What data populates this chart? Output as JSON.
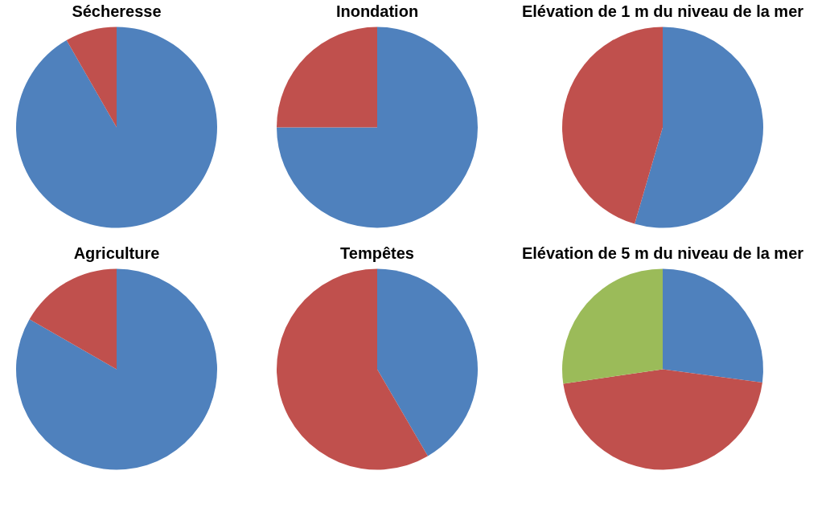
{
  "chart_data": [
    {
      "type": "pie",
      "title": "Sécheresse",
      "categories": [
        null,
        null
      ],
      "values": [
        91.7,
        8.3
      ],
      "colors": [
        "#4f81bd",
        "#c0504d"
      ]
    },
    {
      "type": "pie",
      "title": "Inondation",
      "categories": [
        null,
        null
      ],
      "values": [
        75,
        25
      ],
      "colors": [
        "#4f81bd",
        "#c0504d"
      ]
    },
    {
      "type": "pie",
      "title": "Elévation de 1 m du niveau de la mer",
      "categories": [
        null,
        null
      ],
      "values": [
        54.5,
        45.5
      ],
      "colors": [
        "#4f81bd",
        "#c0504d"
      ]
    },
    {
      "type": "pie",
      "title": "Agriculture",
      "categories": [
        null,
        null
      ],
      "values": [
        83.3,
        16.7
      ],
      "colors": [
        "#4f81bd",
        "#c0504d"
      ]
    },
    {
      "type": "pie",
      "title": "Tempêtes",
      "categories": [
        null,
        null
      ],
      "values": [
        41.6,
        58.4
      ],
      "colors": [
        "#4f81bd",
        "#c0504d"
      ]
    },
    {
      "type": "pie",
      "title": "Elévation de 5 m du niveau de la mer",
      "categories": [
        null,
        null,
        null
      ],
      "values": [
        27.1,
        45.6,
        27.3
      ],
      "colors": [
        "#4f81bd",
        "#c0504d",
        "#9bbb59"
      ]
    }
  ]
}
